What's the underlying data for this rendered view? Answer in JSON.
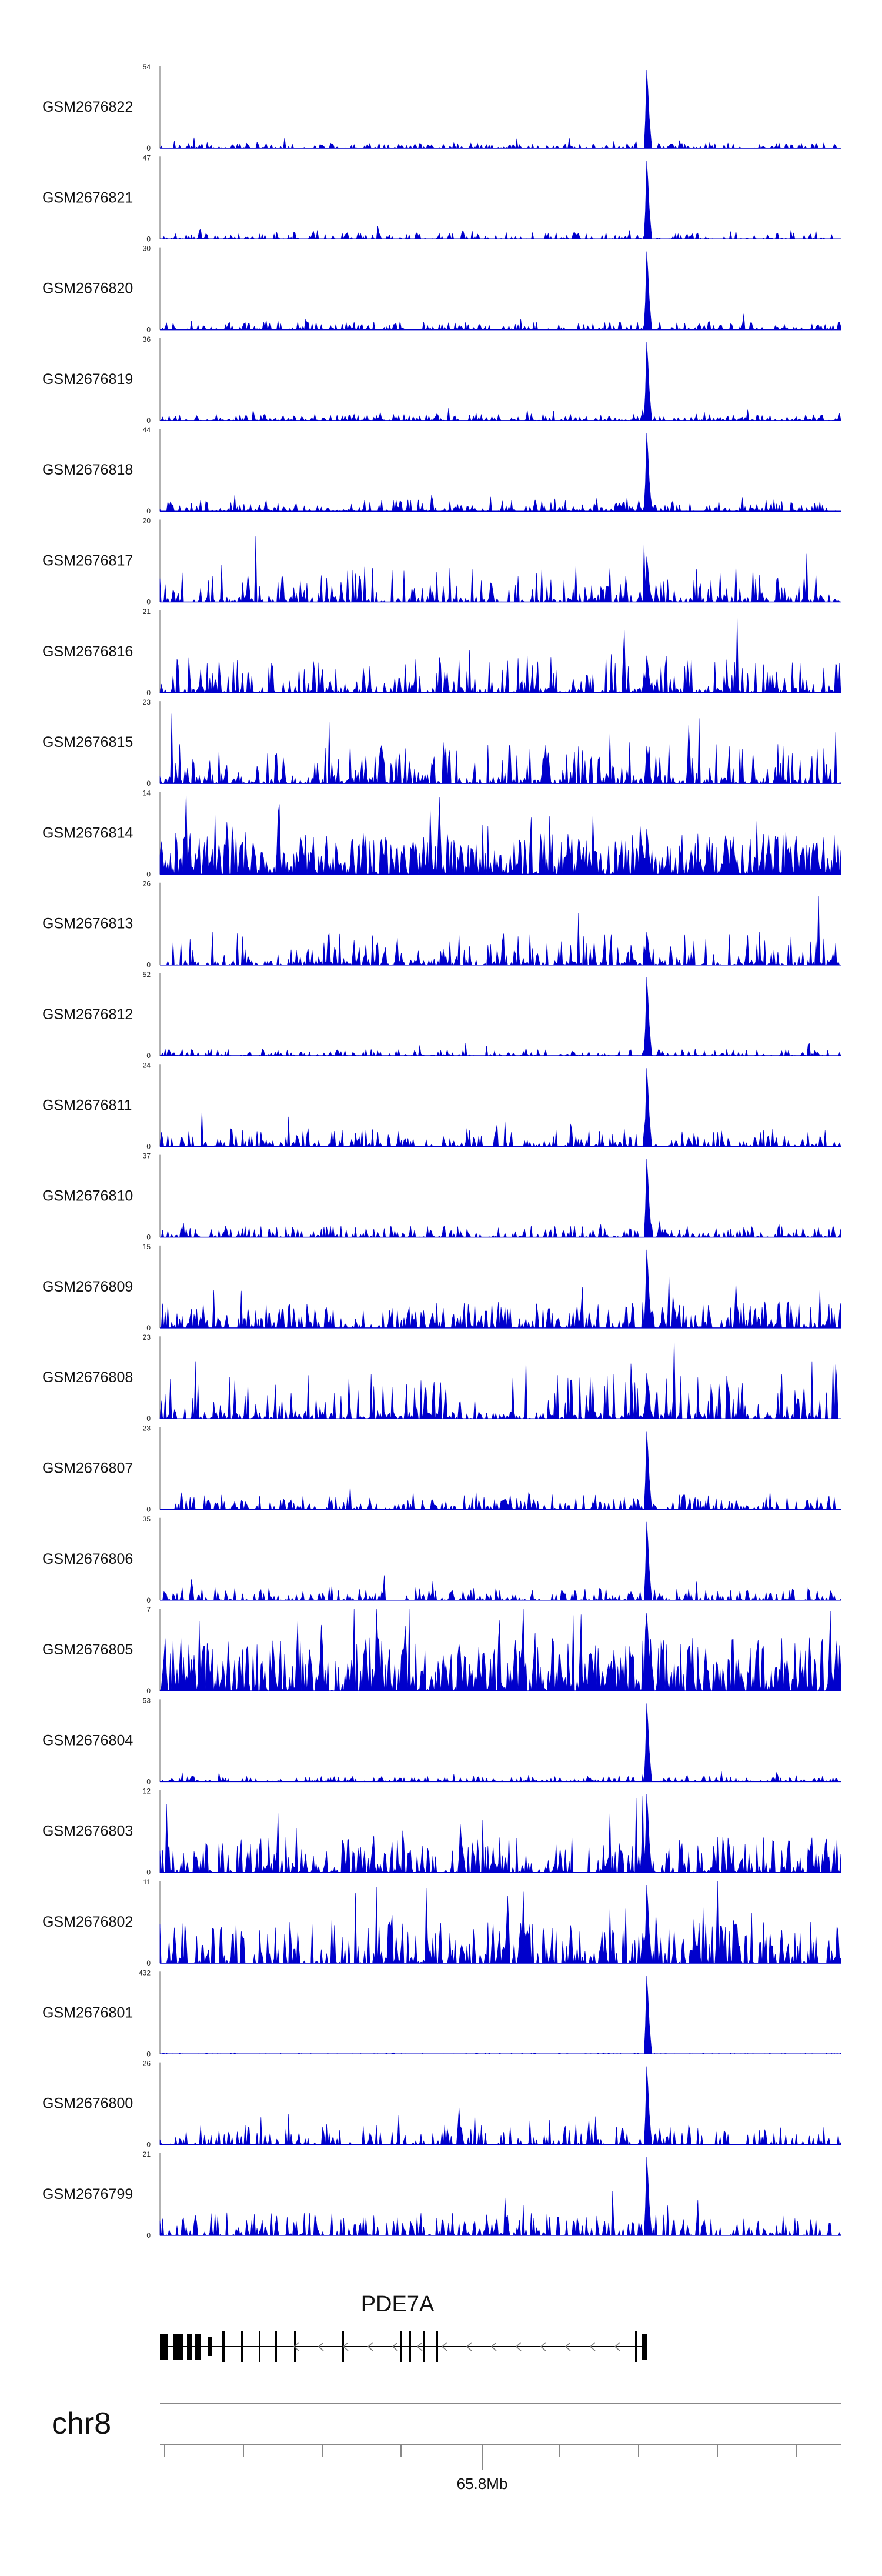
{
  "chart_data": {
    "type": "area",
    "title": "",
    "chromosome": "chr8",
    "gene": {
      "name": "PDE7A",
      "strand": "-"
    },
    "axis": {
      "tick_label": "65.8Mb"
    },
    "colors": {
      "signal": "#0000cc",
      "gene_model": "#000000",
      "axis": "#888888"
    },
    "peak_position": 0.713,
    "tracks": [
      {
        "name": "GSM2676822",
        "ymax": "54",
        "ymin": "0",
        "profile": "sharp",
        "peak": 0.95,
        "background": 0.07
      },
      {
        "name": "GSM2676821",
        "ymax": "47",
        "ymin": "0",
        "profile": "sharp",
        "peak": 0.95,
        "background": 0.08
      },
      {
        "name": "GSM2676820",
        "ymax": "30",
        "ymin": "0",
        "profile": "sharp",
        "peak": 0.95,
        "background": 0.1
      },
      {
        "name": "GSM2676819",
        "ymax": "36",
        "ymin": "0",
        "profile": "sharp",
        "peak": 0.95,
        "background": 0.08
      },
      {
        "name": "GSM2676818",
        "ymax": "44",
        "ymin": "0",
        "profile": "sharp",
        "peak": 0.95,
        "background": 0.14
      },
      {
        "name": "GSM2676817",
        "ymax": "20",
        "ymin": "0",
        "profile": "sparse",
        "peak": 0.55,
        "background": 0.45
      },
      {
        "name": "GSM2676816",
        "ymax": "21",
        "ymin": "0",
        "profile": "sparse",
        "peak": 0.45,
        "background": 0.45
      },
      {
        "name": "GSM2676815",
        "ymax": "23",
        "ymin": "0",
        "profile": "sparse",
        "peak": 0.45,
        "background": 0.5
      },
      {
        "name": "GSM2676814",
        "ymax": "14",
        "ymin": "0",
        "profile": "dense",
        "peak": 0.55,
        "background": 0.5
      },
      {
        "name": "GSM2676813",
        "ymax": "26",
        "ymin": "0",
        "profile": "sparse",
        "peak": 0.4,
        "background": 0.4
      },
      {
        "name": "GSM2676812",
        "ymax": "52",
        "ymin": "0",
        "profile": "sharp",
        "peak": 0.95,
        "background": 0.08
      },
      {
        "name": "GSM2676811",
        "ymax": "24",
        "ymin": "0",
        "profile": "sharp",
        "peak": 0.95,
        "background": 0.22
      },
      {
        "name": "GSM2676810",
        "ymax": "37",
        "ymin": "0",
        "profile": "sharp",
        "peak": 0.95,
        "background": 0.14
      },
      {
        "name": "GSM2676809",
        "ymax": "15",
        "ymin": "0",
        "profile": "medium",
        "peak": 0.95,
        "background": 0.32
      },
      {
        "name": "GSM2676808",
        "ymax": "23",
        "ymin": "0",
        "profile": "sparse",
        "peak": 0.55,
        "background": 0.55
      },
      {
        "name": "GSM2676807",
        "ymax": "23",
        "ymin": "0",
        "profile": "sharp",
        "peak": 0.95,
        "background": 0.18
      },
      {
        "name": "GSM2676806",
        "ymax": "35",
        "ymin": "0",
        "profile": "sharp",
        "peak": 0.95,
        "background": 0.16
      },
      {
        "name": "GSM2676805",
        "ymax": "7",
        "ymin": "0",
        "profile": "dense",
        "peak": 0.95,
        "background": 0.65
      },
      {
        "name": "GSM2676804",
        "ymax": "53",
        "ymin": "0",
        "profile": "sharp",
        "peak": 0.95,
        "background": 0.07
      },
      {
        "name": "GSM2676803",
        "ymax": "12",
        "ymin": "0",
        "profile": "medium",
        "peak": 0.95,
        "background": 0.45
      },
      {
        "name": "GSM2676802",
        "ymax": "11",
        "ymin": "0",
        "profile": "medium",
        "peak": 0.95,
        "background": 0.5
      },
      {
        "name": "GSM2676801",
        "ymax": "432",
        "ymin": "0",
        "profile": "sharp",
        "peak": 0.95,
        "background": 0.01
      },
      {
        "name": "GSM2676800",
        "ymax": "26",
        "ymin": "0",
        "profile": "sharp",
        "peak": 0.95,
        "background": 0.25
      },
      {
        "name": "GSM2676799",
        "ymax": "21",
        "ymin": "0",
        "profile": "sharp",
        "peak": 0.95,
        "background": 0.28
      }
    ]
  }
}
